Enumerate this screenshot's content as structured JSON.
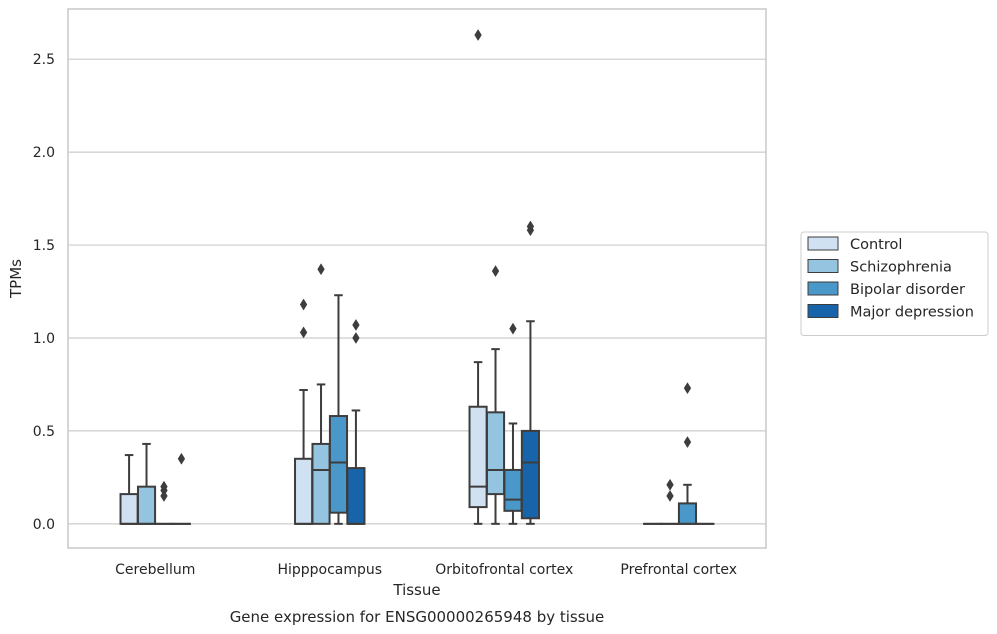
{
  "chart_data": {
    "type": "box",
    "caption": "Gene expression for ENSG00000265948 by tissue",
    "xlabel": "Tissue",
    "ylabel": "TPMs",
    "ylim": [
      -0.13,
      2.77
    ],
    "yticks": [
      0.0,
      0.5,
      1.0,
      1.5,
      2.0,
      2.5
    ],
    "ytick_labels": [
      "0.0",
      "0.5",
      "1.0",
      "1.5",
      "2.0",
      "2.5"
    ],
    "categories": [
      "Cerebellum",
      "Hipppocampus",
      "Orbitofrontal cortex",
      "Prefrontal cortex"
    ],
    "grid": "horizontal",
    "legend_position": "right",
    "series": [
      {
        "name": "Control",
        "color": "#d0e1f2",
        "boxes": [
          {
            "min": 0.0,
            "q1": 0.0,
            "median": 0.0,
            "q3": 0.16,
            "max": 0.37,
            "outliers": []
          },
          {
            "min": 0.0,
            "q1": 0.0,
            "median": 0.0,
            "q3": 0.35,
            "max": 0.72,
            "outliers": [
              1.03,
              1.18
            ]
          },
          {
            "min": 0.0,
            "q1": 0.09,
            "median": 0.2,
            "q3": 0.63,
            "max": 0.87,
            "outliers": [
              2.63
            ]
          },
          {
            "min": 0.0,
            "q1": 0.0,
            "median": 0.0,
            "q3": 0.0,
            "max": 0.0,
            "outliers": []
          }
        ]
      },
      {
        "name": "Schizophrenia",
        "color": "#94c4df",
        "boxes": [
          {
            "min": 0.0,
            "q1": 0.0,
            "median": 0.0,
            "q3": 0.2,
            "max": 0.43,
            "outliers": []
          },
          {
            "min": 0.0,
            "q1": 0.0,
            "median": 0.29,
            "q3": 0.43,
            "max": 0.75,
            "outliers": [
              1.37
            ]
          },
          {
            "min": 0.0,
            "q1": 0.16,
            "median": 0.29,
            "q3": 0.6,
            "max": 0.94,
            "outliers": [
              1.36
            ]
          },
          {
            "min": 0.0,
            "q1": 0.0,
            "median": 0.0,
            "q3": 0.0,
            "max": 0.0,
            "outliers": [
              0.15,
              0.21
            ]
          }
        ]
      },
      {
        "name": "Bipolar disorder",
        "color": "#4a98c9",
        "boxes": [
          {
            "min": 0.0,
            "q1": 0.0,
            "median": 0.0,
            "q3": 0.0,
            "max": 0.0,
            "outliers": [
              0.15,
              0.18,
              0.2
            ]
          },
          {
            "min": 0.0,
            "q1": 0.06,
            "median": 0.33,
            "q3": 0.58,
            "max": 1.23,
            "outliers": []
          },
          {
            "min": 0.0,
            "q1": 0.07,
            "median": 0.13,
            "q3": 0.29,
            "max": 0.54,
            "outliers": [
              1.05
            ]
          },
          {
            "min": 0.0,
            "q1": 0.0,
            "median": 0.0,
            "q3": 0.11,
            "max": 0.21,
            "outliers": [
              0.44,
              0.73
            ]
          }
        ]
      },
      {
        "name": "Major depression",
        "color": "#1764ab",
        "boxes": [
          {
            "min": 0.0,
            "q1": 0.0,
            "median": 0.0,
            "q3": 0.0,
            "max": 0.0,
            "outliers": [
              0.35
            ]
          },
          {
            "min": 0.0,
            "q1": 0.0,
            "median": 0.0,
            "q3": 0.3,
            "max": 0.61,
            "outliers": [
              1.0,
              1.07
            ]
          },
          {
            "min": 0.0,
            "q1": 0.03,
            "median": 0.33,
            "q3": 0.5,
            "max": 1.09,
            "outliers": [
              1.58,
              1.6
            ]
          },
          {
            "min": 0.0,
            "q1": 0.0,
            "median": 0.0,
            "q3": 0.0,
            "max": 0.0,
            "outliers": []
          }
        ]
      }
    ]
  }
}
